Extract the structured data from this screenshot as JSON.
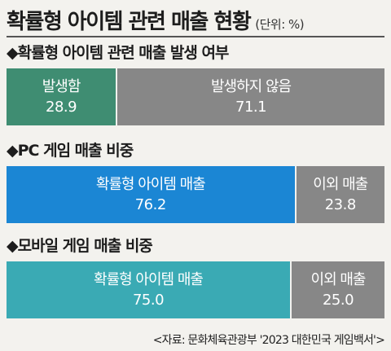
{
  "title": "확률형 아이템 관련 매출 현황",
  "unit": "(단위: %)",
  "source": "<자료: 문화체육관광부 '2023 대한민국 게임백서'>",
  "chart_data": [
    {
      "type": "bar",
      "orientation": "horizontal-stacked",
      "title": "◆확률형 아이템 관련 매출 발생 여부",
      "series": [
        {
          "name": "발생함",
          "value": 28.9,
          "value_label": "28.9",
          "color": "#3f8d72"
        },
        {
          "name": "발생하지 않음",
          "value": 71.1,
          "value_label": "71.1",
          "color": "#878787"
        }
      ]
    },
    {
      "type": "bar",
      "orientation": "horizontal-stacked",
      "title": "◆PC 게임 매출 비중",
      "series": [
        {
          "name": "확률형 아이템 매출",
          "value": 76.2,
          "value_label": "76.2",
          "color": "#1b86d4"
        },
        {
          "name": "이외 매출",
          "value": 23.8,
          "value_label": "23.8",
          "color": "#878787"
        }
      ]
    },
    {
      "type": "bar",
      "orientation": "horizontal-stacked",
      "title": "◆모바일 게임 매출 비중",
      "series": [
        {
          "name": "확률형 아이템 매출",
          "value": 75.0,
          "value_label": "75.0",
          "color": "#3aaab4"
        },
        {
          "name": "이외 매출",
          "value": 25.0,
          "value_label": "25.0",
          "color": "#878787"
        }
      ]
    }
  ]
}
